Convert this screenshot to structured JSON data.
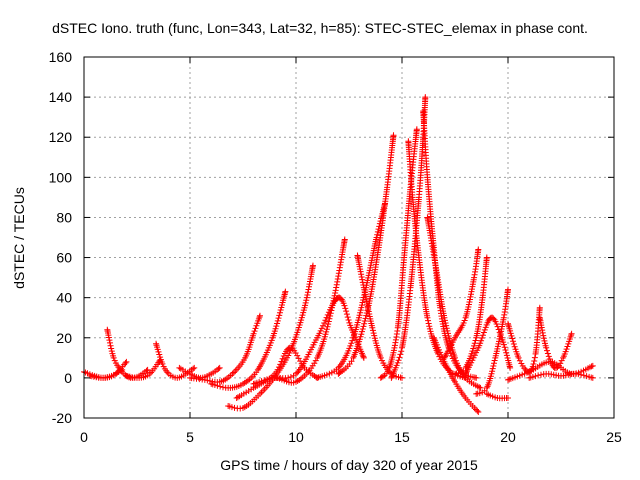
{
  "chart_data": {
    "type": "scatter",
    "title": "dSTEC Iono. truth (func, Lon=343, Lat=32, h=85): STEC-STEC_elemax in phase cont.",
    "xlabel": "GPS time / hours of day 320 of year 2015",
    "ylabel": "dSTEC  / TECUs",
    "xlim": [
      0,
      25
    ],
    "ylim": [
      -20,
      160
    ],
    "xticks": [
      "0",
      "5",
      "10",
      "15",
      "20",
      "25"
    ],
    "yticks": [
      "-20",
      "0",
      "20",
      "40",
      "60",
      "80",
      "100",
      "120",
      "140",
      "160"
    ],
    "grid": true,
    "marker": "+",
    "color": "#ff0000",
    "series": [
      {
        "x": [
          0.0,
          0.5,
          1.0,
          1.5,
          2.0
        ],
        "y": [
          3,
          1,
          0,
          2,
          8
        ]
      },
      {
        "x": [
          1.1,
          1.4,
          1.8,
          2.2,
          2.6,
          3.0
        ],
        "y": [
          24,
          10,
          3,
          0,
          1,
          4
        ]
      },
      {
        "x": [
          0.3,
          0.8,
          1.3,
          1.8
        ],
        "y": [
          1,
          0,
          1,
          4
        ]
      },
      {
        "x": [
          3.4,
          3.7,
          4.0,
          4.4,
          4.8,
          5.2
        ],
        "y": [
          17,
          7,
          2,
          0,
          2,
          5
        ]
      },
      {
        "x": [
          2.0,
          2.6,
          3.1,
          3.6
        ],
        "y": [
          1,
          0,
          2,
          9
        ]
      },
      {
        "x": [
          4.5,
          5.0,
          5.5,
          6.0,
          6.4
        ],
        "y": [
          5,
          2,
          0,
          2,
          5
        ]
      },
      {
        "x": [
          5.0,
          5.7,
          6.4,
          7.0,
          7.6,
          8.0,
          8.3
        ],
        "y": [
          0,
          -1,
          -2,
          2,
          10,
          22,
          31
        ]
      },
      {
        "x": [
          6.0,
          6.8,
          7.5,
          8.2,
          8.9,
          9.5
        ],
        "y": [
          -3,
          -5,
          -3,
          4,
          20,
          43
        ]
      },
      {
        "x": [
          6.8,
          7.5,
          8.3,
          9.1,
          9.8,
          10.4,
          10.8
        ],
        "y": [
          -14,
          -15,
          -8,
          2,
          15,
          35,
          56
        ]
      },
      {
        "x": [
          7.2,
          8.0,
          9.0,
          9.7,
          10.4,
          11.0
        ],
        "y": [
          -10,
          -5,
          2,
          15,
          5,
          0
        ]
      },
      {
        "x": [
          8.0,
          9.0,
          10.0,
          11.0,
          11.7,
          12.3
        ],
        "y": [
          -3,
          0,
          -2,
          10,
          35,
          69
        ]
      },
      {
        "x": [
          9.0,
          10.0,
          11.0,
          12.0,
          12.6,
          13.2
        ],
        "y": [
          0,
          2,
          20,
          40,
          25,
          10
        ]
      },
      {
        "x": [
          12.9,
          13.2,
          13.6,
          14.0,
          14.5,
          15.0
        ],
        "y": [
          61,
          45,
          25,
          10,
          2,
          0
        ]
      },
      {
        "x": [
          11.0,
          12.0,
          12.7,
          13.3,
          13.8,
          14.2
        ],
        "y": [
          0,
          5,
          20,
          45,
          70,
          87
        ]
      },
      {
        "x": [
          12.0,
          12.7,
          13.4,
          13.9,
          14.3,
          14.6
        ],
        "y": [
          2,
          10,
          35,
          65,
          95,
          121
        ]
      },
      {
        "x": [
          14.0,
          14.4,
          14.8,
          15.1,
          15.4,
          15.7
        ],
        "y": [
          0,
          5,
          25,
          60,
          95,
          124
        ]
      },
      {
        "x": [
          15.3,
          15.5,
          15.8,
          16.2,
          16.7,
          17.3,
          18.0
        ],
        "y": [
          118,
          90,
          60,
          30,
          12,
          3,
          0
        ]
      },
      {
        "x": [
          14.5,
          15.0,
          15.4,
          15.8,
          16.0,
          16.1
        ],
        "y": [
          0,
          15,
          45,
          90,
          120,
          140
        ]
      },
      {
        "x": [
          16.0,
          16.2,
          16.5,
          16.8,
          17.2,
          17.8,
          18.5
        ],
        "y": [
          133,
          100,
          65,
          35,
          15,
          3,
          0
        ]
      },
      {
        "x": [
          16.2,
          16.6,
          17.0,
          17.5,
          18.0,
          18.7
        ],
        "y": [
          80,
          55,
          30,
          10,
          0,
          -5
        ]
      },
      {
        "x": [
          16.5,
          17.0,
          17.5,
          18.0,
          18.6
        ],
        "y": [
          20,
          8,
          -2,
          -10,
          -17
        ]
      },
      {
        "x": [
          17.0,
          17.5,
          18.0,
          18.4,
          18.6
        ],
        "y": [
          10,
          20,
          30,
          50,
          64
        ]
      },
      {
        "x": [
          17.5,
          18.0,
          18.5,
          18.8,
          19.0
        ],
        "y": [
          2,
          5,
          20,
          40,
          60
        ]
      },
      {
        "x": [
          18.0,
          18.6,
          19.2,
          19.7,
          20.1
        ],
        "y": [
          2,
          15,
          30,
          20,
          5
        ]
      },
      {
        "x": [
          18.5,
          19.0,
          19.4,
          19.8,
          20.0
        ],
        "y": [
          -8,
          -5,
          10,
          30,
          44
        ]
      },
      {
        "x": [
          19.0,
          19.5,
          20.0
        ],
        "y": [
          -8,
          -10,
          -10
        ]
      },
      {
        "x": [
          20.0,
          20.5,
          21.0,
          21.3,
          21.5
        ],
        "y": [
          27,
          10,
          3,
          12,
          35
        ]
      },
      {
        "x": [
          21.5,
          21.8,
          22.2,
          22.6,
          23.0
        ],
        "y": [
          30,
          15,
          5,
          10,
          22
        ]
      },
      {
        "x": [
          21.0,
          21.8,
          22.5,
          23.2,
          24.0
        ],
        "y": [
          0,
          2,
          1,
          2,
          0
        ]
      },
      {
        "x": [
          20.0,
          21.0,
          22.0,
          23.0,
          24.0
        ],
        "y": [
          -1,
          3,
          8,
          2,
          6
        ]
      }
    ]
  }
}
